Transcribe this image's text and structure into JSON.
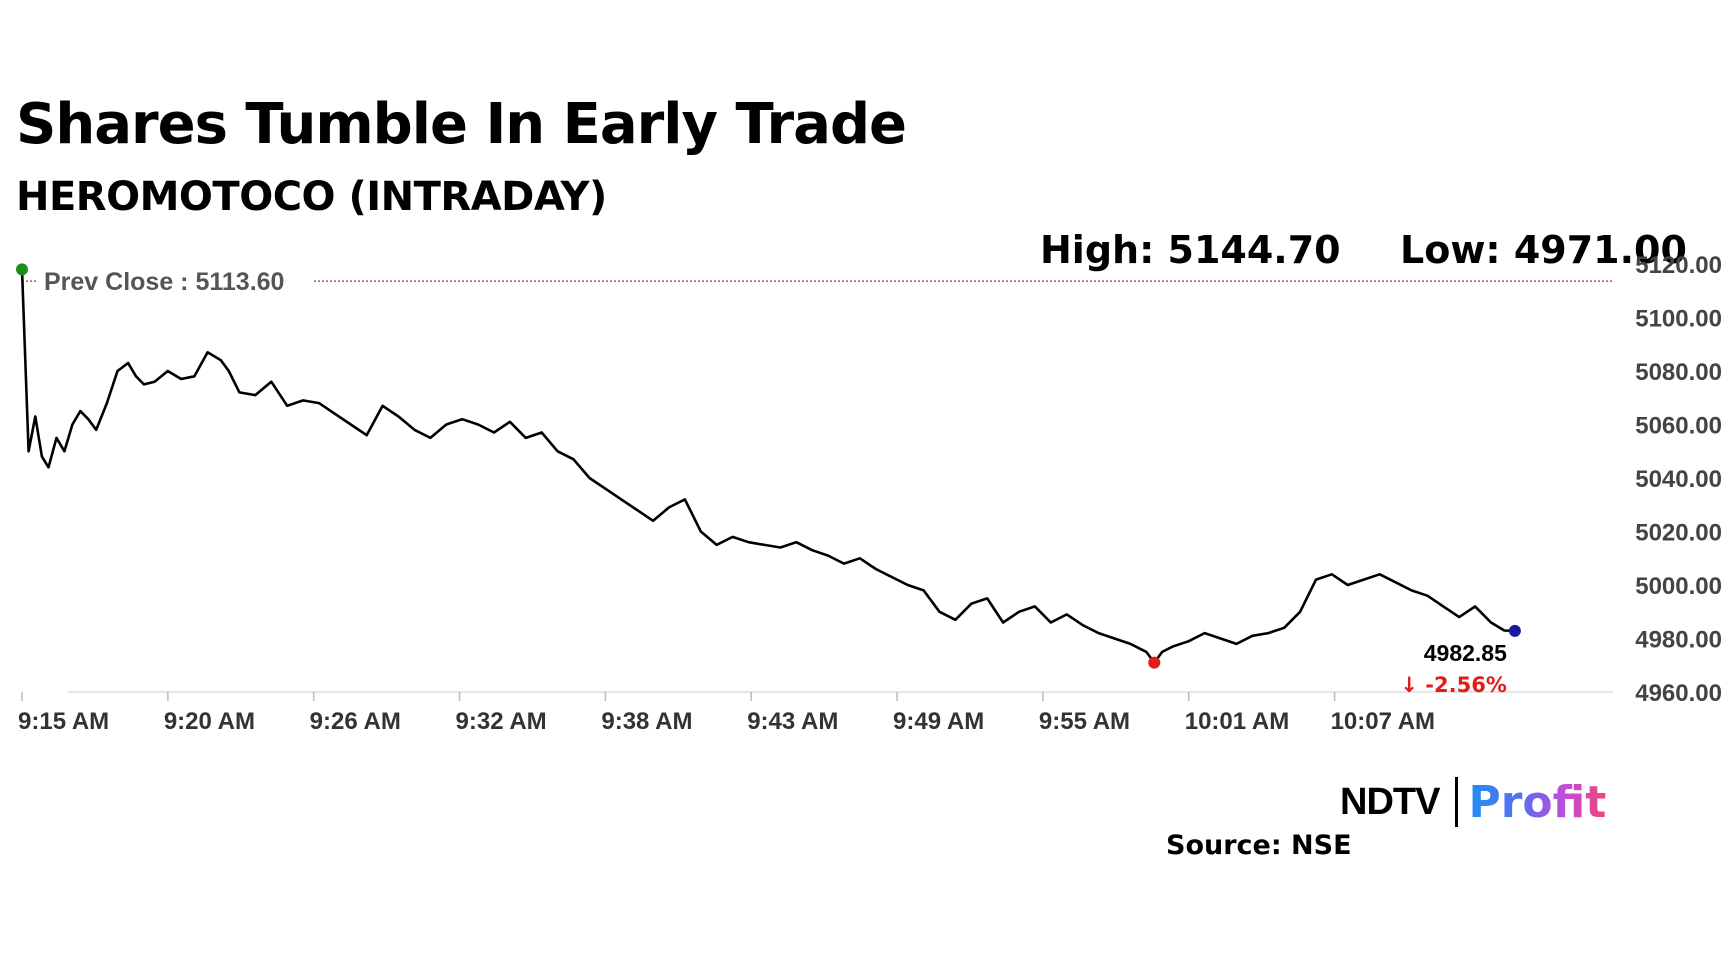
{
  "header": {
    "title": "Shares Tumble In Early Trade",
    "subtitle": "HEROMOTOCO (INTRADAY)"
  },
  "stats": {
    "high": "High: 5144.70",
    "low": "Low: 4971.00"
  },
  "footer": {
    "source": "Source: NSE",
    "logo_left": "NDTV",
    "logo_right": "Profit"
  },
  "colors": {
    "line": "#000000",
    "prev_close_line": "#a52a2a",
    "start_marker": "#1a8f1a",
    "low_marker": "#e31b1b",
    "end_marker": "#1a1aa0",
    "change_negative": "#e31b1b"
  },
  "chart_data": {
    "type": "line",
    "title": "Shares Tumble In Early Trade",
    "subtitle": "HEROMOTOCO (INTRADAY)",
    "xlabel": "",
    "ylabel": "",
    "ylim": [
      4960,
      5120
    ],
    "yticks": [
      4960,
      4980,
      5000,
      5020,
      5040,
      5060,
      5080,
      5100,
      5120
    ],
    "ytick_labels": [
      "4960.00",
      "4980.00",
      "5000.00",
      "5020.00",
      "5040.00",
      "5060.00",
      "5080.00",
      "5100.00",
      "5120.00"
    ],
    "x_range_minutes": [
      0,
      60
    ],
    "xticks": [
      0,
      5.5,
      11,
      16.5,
      22,
      27.5,
      33,
      38.5,
      44,
      49.5
    ],
    "xtick_labels": [
      "9:15 AM",
      "9:20 AM",
      "9:26 AM",
      "9:32 AM",
      "9:38 AM",
      "9:43 AM",
      "9:49 AM",
      "9:55 AM",
      "10:01 AM",
      "10:07 AM"
    ],
    "grid": false,
    "prev_close": {
      "value": 5113.6,
      "label": "Prev Close : 5113.60"
    },
    "last": {
      "value": 4982.85,
      "label": "4982.85",
      "change": "-2.56%",
      "arrow": "↓"
    },
    "series": [
      {
        "x_minutes": [
          0,
          0.25,
          0.5,
          0.75,
          1,
          1.3,
          1.6,
          1.9,
          2.2,
          2.5,
          2.8,
          3.2,
          3.6,
          4,
          4.3,
          4.6,
          5,
          5.5,
          6,
          6.5,
          7,
          7.5,
          7.8,
          8.2,
          8.8,
          9.4,
          10,
          10.6,
          11.2,
          11.8,
          12.4,
          13,
          13.6,
          14.2,
          14.8,
          15.4,
          16,
          16.6,
          17.2,
          17.8,
          18.4,
          19,
          19.6,
          20.2,
          20.8,
          21.4,
          22,
          22.6,
          23.2,
          23.8,
          24.4,
          25,
          25.6,
          26.2,
          26.8,
          27.4,
          28,
          28.6,
          29.2,
          29.8,
          30.4,
          31,
          31.6,
          32.2,
          32.8,
          33.4,
          34,
          34.6,
          35.2,
          35.8,
          36.4,
          37,
          37.6,
          38.2,
          38.8,
          39.4,
          40,
          40.6,
          41.2,
          41.8,
          42.4,
          42.7,
          43,
          43.4,
          44,
          44.6,
          45.2,
          45.8,
          46.4,
          47,
          47.6,
          48.2,
          48.8,
          49.4,
          50,
          50.6,
          51.2,
          51.8,
          52.4,
          53,
          53.6,
          54.2,
          54.8,
          55.4,
          55.9,
          56.3
        ],
        "values": [
          5118.0,
          5050.0,
          5063.0,
          5048.0,
          5044.0,
          5055.0,
          5050.0,
          5060.0,
          5065.0,
          5062.0,
          5058.0,
          5068.0,
          5080.0,
          5083.0,
          5078.0,
          5075.0,
          5076.0,
          5080.0,
          5077.0,
          5078.0,
          5087.0,
          5084.0,
          5080.0,
          5072.0,
          5071.0,
          5076.0,
          5067.0,
          5069.0,
          5068.0,
          5064.0,
          5060.0,
          5056.0,
          5067.0,
          5063.0,
          5058.0,
          5055.0,
          5060.0,
          5062.0,
          5060.0,
          5057.0,
          5061.0,
          5055.0,
          5057.0,
          5050.0,
          5047.0,
          5040.0,
          5036.0,
          5032.0,
          5028.0,
          5024.0,
          5029.0,
          5032.0,
          5020.0,
          5015.0,
          5018.0,
          5016.0,
          5015.0,
          5014.0,
          5016.0,
          5013.0,
          5011.0,
          5008.0,
          5010.0,
          5006.0,
          5003.0,
          5000.0,
          4998.0,
          4990.0,
          4987.0,
          4993.0,
          4995.0,
          4986.0,
          4990.0,
          4992.0,
          4986.0,
          4989.0,
          4985.0,
          4982.0,
          4980.0,
          4978.0,
          4975.0,
          4971.0,
          4975.0,
          4977.0,
          4979.0,
          4982.0,
          4980.0,
          4978.0,
          4981.0,
          4982.0,
          4984.0,
          4990.0,
          5002.0,
          5004.0,
          5000.0,
          5002.0,
          5004.0,
          5001.0,
          4998.0,
          4996.0,
          4992.0,
          4988.0,
          4992.0,
          4986.0,
          4983.0,
          4982.85
        ]
      }
    ]
  }
}
